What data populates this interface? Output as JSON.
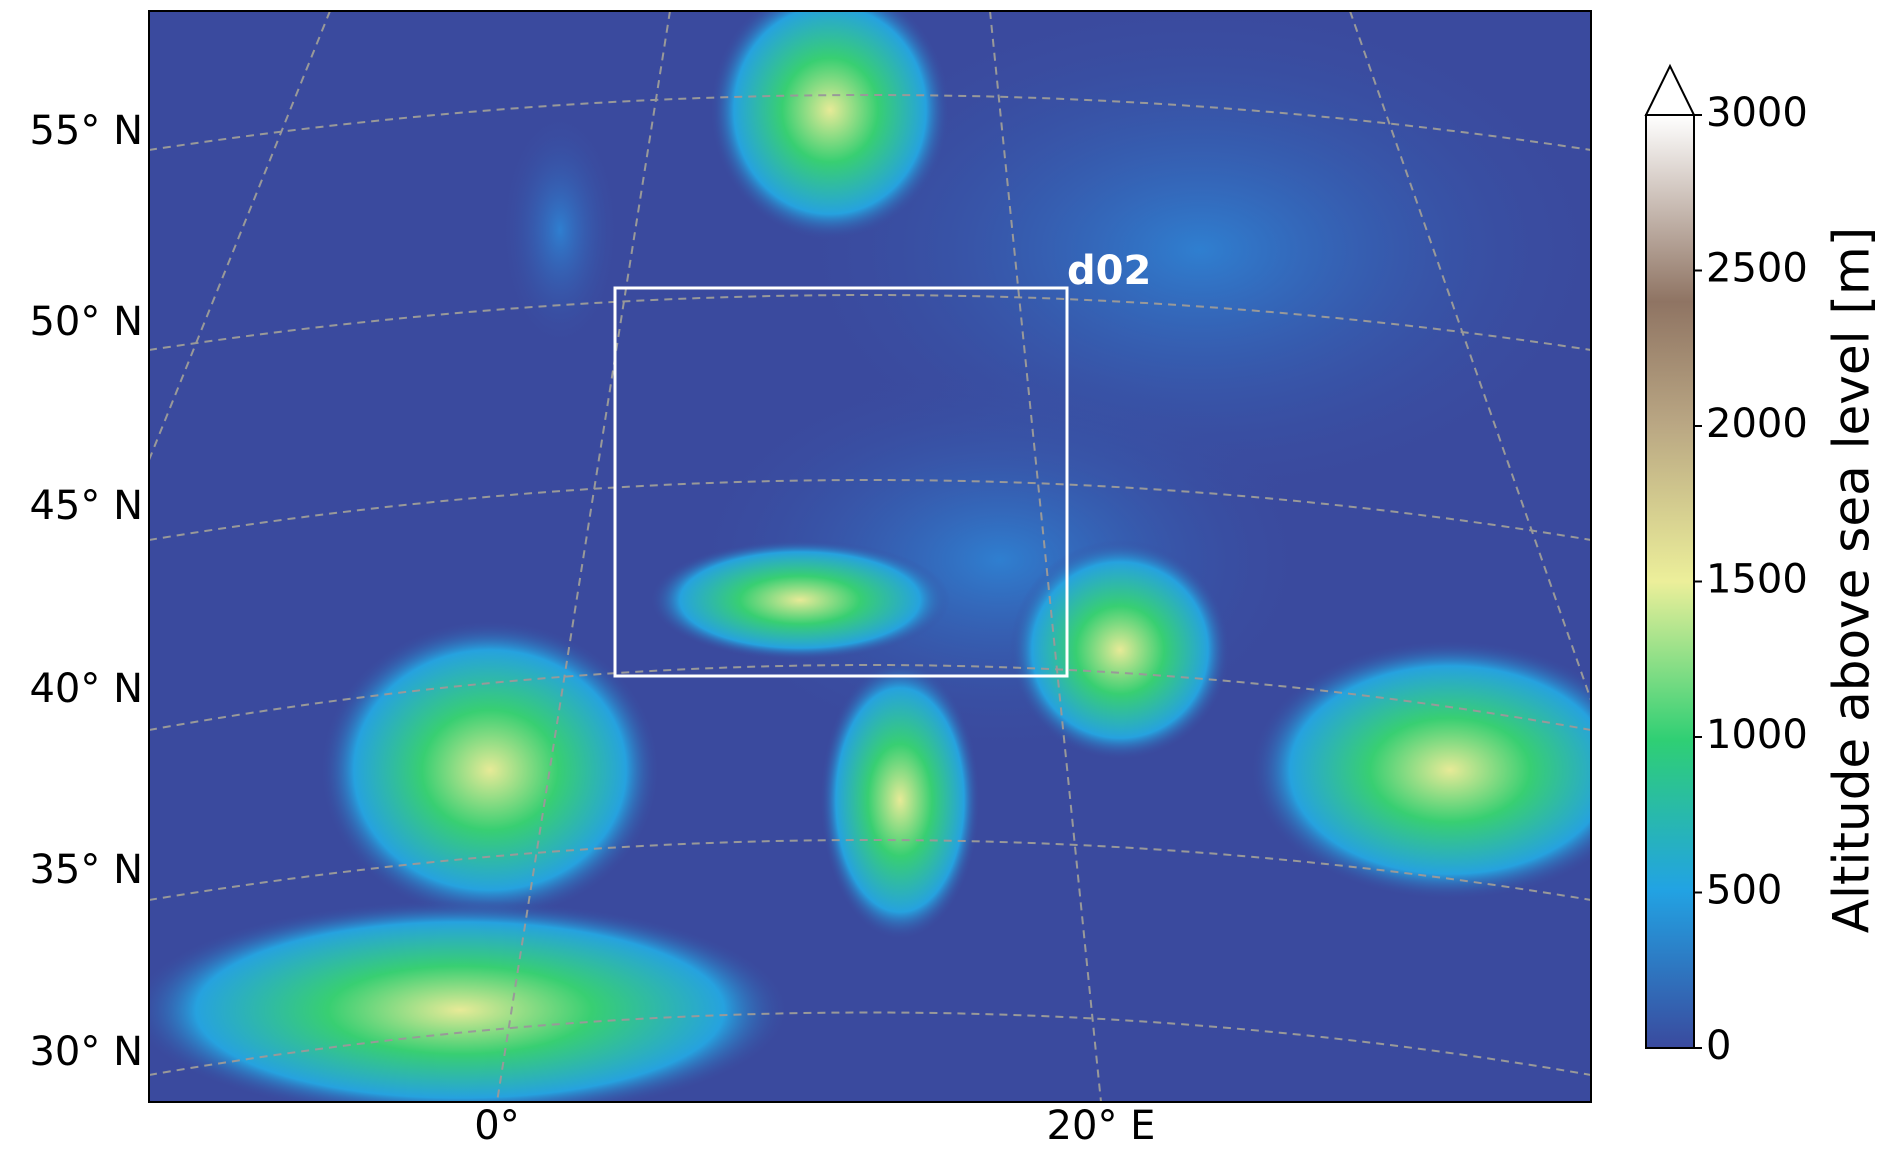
{
  "map": {
    "lat_labels": [
      "55° N",
      "50° N",
      "45° N",
      "40° N",
      "35° N",
      "30° N"
    ],
    "lon_labels": [
      "0°",
      "20° E"
    ],
    "domain_box": {
      "label": "d02"
    },
    "colorbar": {
      "label": "Altitude above sea level [m]",
      "lim": [
        0,
        3000
      ],
      "ticks": [
        0,
        500,
        1000,
        1500,
        2000,
        2500,
        3000
      ]
    }
  }
}
